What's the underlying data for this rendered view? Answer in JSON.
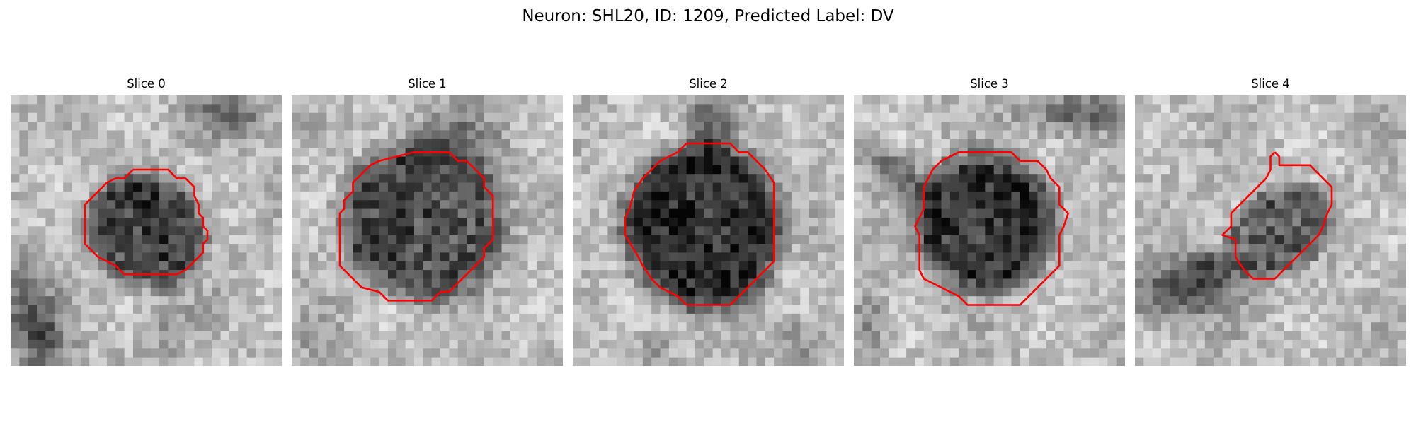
{
  "figure": {
    "title": "Neuron: SHL20, ID: 1209, Predicted Label: DV"
  },
  "slices": [
    {
      "title": "Slice 0"
    },
    {
      "title": "Slice 1"
    },
    {
      "title": "Slice 2"
    },
    {
      "title": "Slice 3"
    },
    {
      "title": "Slice 4"
    }
  ],
  "colors": {
    "contour": "#ff0000",
    "background": "#ffffff"
  }
}
